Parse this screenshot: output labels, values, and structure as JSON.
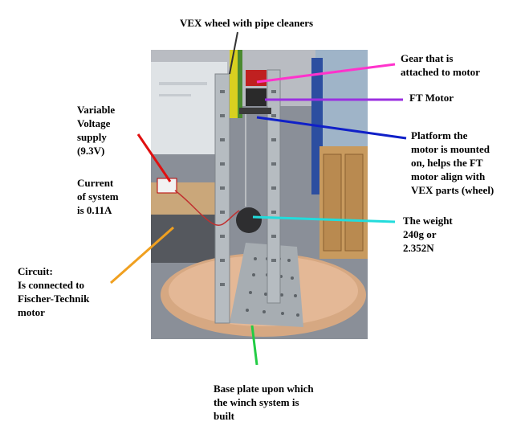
{
  "labels": {
    "vex_wheel": "VEX wheel with pipe cleaners",
    "gear": "Gear that is\nattached to motor",
    "ft_motor": "FT Motor",
    "platform": "Platform the\nmotor is mounted\non, helps the FT\nmotor align with\nVEX parts (wheel)",
    "voltage": "Variable\nVoltage\nsupply\n(9.3V)",
    "current": "Current\nof system\nis 0.11A",
    "weight": "The weight\n240g or\n2.352N",
    "circuit": "Circuit:\nIs connected to\nFischer-Technik\nmotor",
    "base_plate": "Base plate upon which\nthe winch system is\nbuilt"
  },
  "colors": {
    "vex_wheel": "#333333",
    "gear": "#ff33cc",
    "ft_motor": "#9b30e0",
    "platform": "#1020c8",
    "voltage": "#e01010",
    "weight": "#22dcdc",
    "circuit": "#f0a020",
    "base_plate": "#22cc44"
  }
}
